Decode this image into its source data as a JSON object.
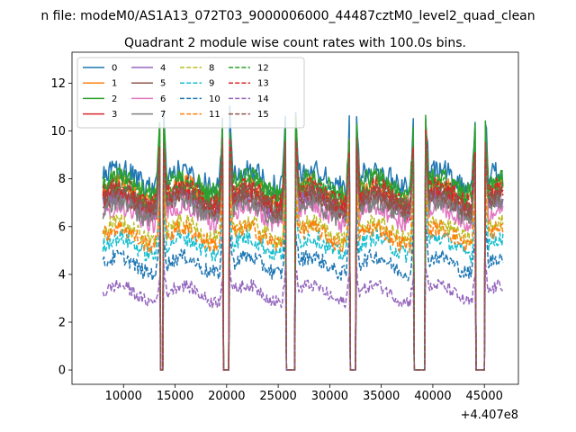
{
  "figure": {
    "suptitle": "n file: modeM0/AS1A13_072T03_9000006000_44487cztM0_level2_quad_clean",
    "title": "Quadrant 2 module wise count rates with 100.0s bins.",
    "offset_text": "+4.407e8"
  },
  "chart_data": {
    "type": "line",
    "title": "Quadrant 2 module wise count rates with 100.0s bins.",
    "xlabel": "",
    "ylabel": "",
    "x_offset": 440700000,
    "xlim": [
      5000,
      48300
    ],
    "ylim": [
      -0.6,
      13.3
    ],
    "xticks": [
      10000,
      15000,
      20000,
      25000,
      30000,
      35000,
      40000,
      45000
    ],
    "xtick_labels": [
      "10000",
      "15000",
      "20000",
      "25000",
      "30000",
      "35000",
      "40000",
      "45000"
    ],
    "yticks": [
      0,
      2,
      4,
      6,
      8,
      10,
      12
    ],
    "ytick_labels": [
      "0",
      "2",
      "4",
      "6",
      "8",
      "10",
      "12"
    ],
    "x_range": [
      8000,
      46800
    ],
    "bin_seconds": 100,
    "zero_gaps": [
      [
        13600,
        13800
      ],
      [
        19700,
        20200
      ],
      [
        25800,
        26600
      ],
      [
        32000,
        32500
      ],
      [
        38200,
        39200
      ],
      [
        44200,
        45000
      ]
    ],
    "legend": {
      "location": "upper-left",
      "columns": 4
    },
    "series": [
      {
        "name": "0",
        "color": "#1f77b4",
        "dash": "solid",
        "typical": 8.0
      },
      {
        "name": "1",
        "color": "#ff7f0e",
        "dash": "solid",
        "typical": 7.4
      },
      {
        "name": "2",
        "color": "#2ca02c",
        "dash": "solid",
        "typical": 7.7
      },
      {
        "name": "3",
        "color": "#d62728",
        "dash": "solid",
        "typical": 7.0
      },
      {
        "name": "4",
        "color": "#9467bd",
        "dash": "solid",
        "typical": 6.9
      },
      {
        "name": "5",
        "color": "#8c564b",
        "dash": "solid",
        "typical": 7.0
      },
      {
        "name": "6",
        "color": "#e377c2",
        "dash": "solid",
        "typical": 6.5
      },
      {
        "name": "7",
        "color": "#7f7f7f",
        "dash": "solid",
        "typical": 6.7
      },
      {
        "name": "8",
        "color": "#bcbd22",
        "dash": "dashed",
        "typical": 5.8
      },
      {
        "name": "9",
        "color": "#17becf",
        "dash": "dashed",
        "typical": 5.2
      },
      {
        "name": "10",
        "color": "#1f77b4",
        "dash": "dashed",
        "typical": 4.4
      },
      {
        "name": "11",
        "color": "#ff7f0e",
        "dash": "dashed",
        "typical": 5.6
      },
      {
        "name": "12",
        "color": "#2ca02c",
        "dash": "dashed",
        "typical": 7.5
      },
      {
        "name": "13",
        "color": "#d62728",
        "dash": "dashed",
        "typical": 7.3
      },
      {
        "name": "14",
        "color": "#9467bd",
        "dash": "dashed",
        "typical": 3.2
      },
      {
        "name": "15",
        "color": "#8c564b",
        "dash": "dashed",
        "typical": 7.1
      }
    ]
  }
}
